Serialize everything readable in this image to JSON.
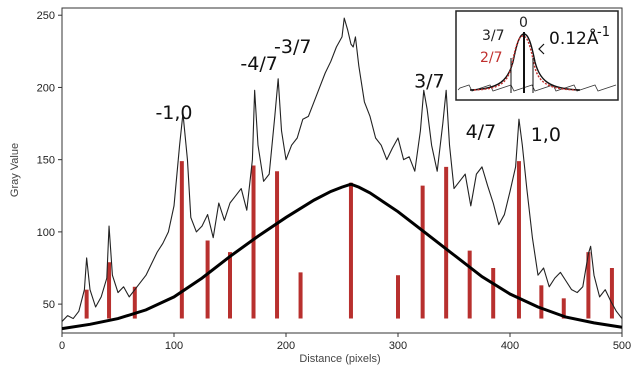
{
  "chart_data": {
    "type": "line",
    "xlabel": "Distance (pixels)",
    "ylabel": "Gray Value",
    "xlim": [
      0,
      500
    ],
    "ylim": [
      30,
      255
    ],
    "x_ticks": [
      0,
      100,
      200,
      300,
      400,
      500
    ],
    "y_ticks": [
      50,
      100,
      150,
      200,
      250
    ],
    "series": [
      {
        "color": "#222222",
        "x": [
          0,
          5,
          10,
          15,
          20,
          22,
          25,
          30,
          35,
          40,
          42,
          45,
          50,
          55,
          60,
          65,
          70,
          75,
          80,
          85,
          90,
          95,
          100,
          105,
          108,
          112,
          115,
          120,
          125,
          130,
          135,
          140,
          145,
          150,
          155,
          160,
          165,
          170,
          172,
          175,
          180,
          185,
          190,
          193,
          196,
          200,
          205,
          210,
          215,
          220,
          225,
          230,
          235,
          240,
          245,
          250,
          252,
          255,
          258,
          260,
          262,
          265,
          270,
          275,
          280,
          285,
          290,
          295,
          300,
          305,
          310,
          315,
          320,
          323,
          326,
          330,
          335,
          340,
          343,
          346,
          350,
          355,
          360,
          365,
          370,
          375,
          380,
          385,
          390,
          395,
          400,
          405,
          408,
          411,
          415,
          420,
          425,
          430,
          435,
          440,
          445,
          450,
          455,
          460,
          465,
          470,
          472,
          475,
          480,
          485,
          490,
          495,
          500
        ],
        "values": [
          38,
          42,
          40,
          45,
          60,
          82,
          60,
          48,
          55,
          68,
          104,
          70,
          58,
          62,
          55,
          60,
          65,
          70,
          78,
          86,
          92,
          100,
          118,
          160,
          182,
          150,
          110,
          100,
          104,
          112,
          96,
          120,
          108,
          120,
          125,
          130,
          115,
          150,
          198,
          160,
          135,
          140,
          180,
          206,
          170,
          150,
          160,
          165,
          178,
          180,
          190,
          200,
          210,
          218,
          228,
          235,
          248,
          240,
          230,
          228,
          235,
          215,
          190,
          180,
          165,
          160,
          150,
          158,
          165,
          150,
          152,
          142,
          170,
          198,
          185,
          160,
          142,
          175,
          198,
          160,
          130,
          135,
          140,
          118,
          140,
          145,
          132,
          120,
          105,
          112,
          128,
          145,
          178,
          160,
          130,
          96,
          70,
          75,
          62,
          68,
          72,
          66,
          60,
          58,
          62,
          85,
          90,
          70,
          55,
          60,
          52,
          45,
          40
        ]
      }
    ],
    "fit_curve": {
      "color": "#000000",
      "x": [
        0,
        25,
        50,
        75,
        100,
        125,
        150,
        175,
        200,
        225,
        240,
        250,
        258,
        265,
        275,
        300,
        325,
        350,
        375,
        400,
        425,
        450,
        475,
        500
      ],
      "values": [
        33,
        36,
        40,
        46,
        55,
        68,
        83,
        97,
        110,
        122,
        128,
        131,
        133,
        131,
        127,
        114,
        99,
        84,
        69,
        57,
        48,
        41,
        37,
        34
      ]
    },
    "red_bars": {
      "color": "#b8302e",
      "x": [
        22,
        42,
        65,
        107,
        130,
        150,
        171,
        192,
        213,
        258,
        300,
        322,
        343,
        364,
        385,
        408,
        428,
        448,
        470,
        491
      ],
      "values": [
        60,
        79,
        62,
        149,
        94,
        86,
        146,
        142,
        72,
        134,
        70,
        132,
        145,
        87,
        75,
        149,
        63,
        54,
        86,
        75
      ]
    },
    "peak_labels": [
      {
        "text": "-1,0",
        "x": 100,
        "y": 178
      },
      {
        "text": "-4/7",
        "x": 176,
        "y": 212
      },
      {
        "text": "-3/7",
        "x": 206,
        "y": 224
      },
      {
        "text": "3/7",
        "x": 328,
        "y": 200
      },
      {
        "text": "4/7",
        "x": 374,
        "y": 165
      },
      {
        "text": "1,0",
        "x": 432,
        "y": 163
      }
    ]
  },
  "inset": {
    "label_3_7": "3/7",
    "label_2_7": "2/7",
    "label_0": "0",
    "label_value": "0.12Å",
    "label_exp": "-1",
    "colors": {
      "label_2_7": "#c0302e",
      "red_curve": "#c0302e"
    }
  }
}
